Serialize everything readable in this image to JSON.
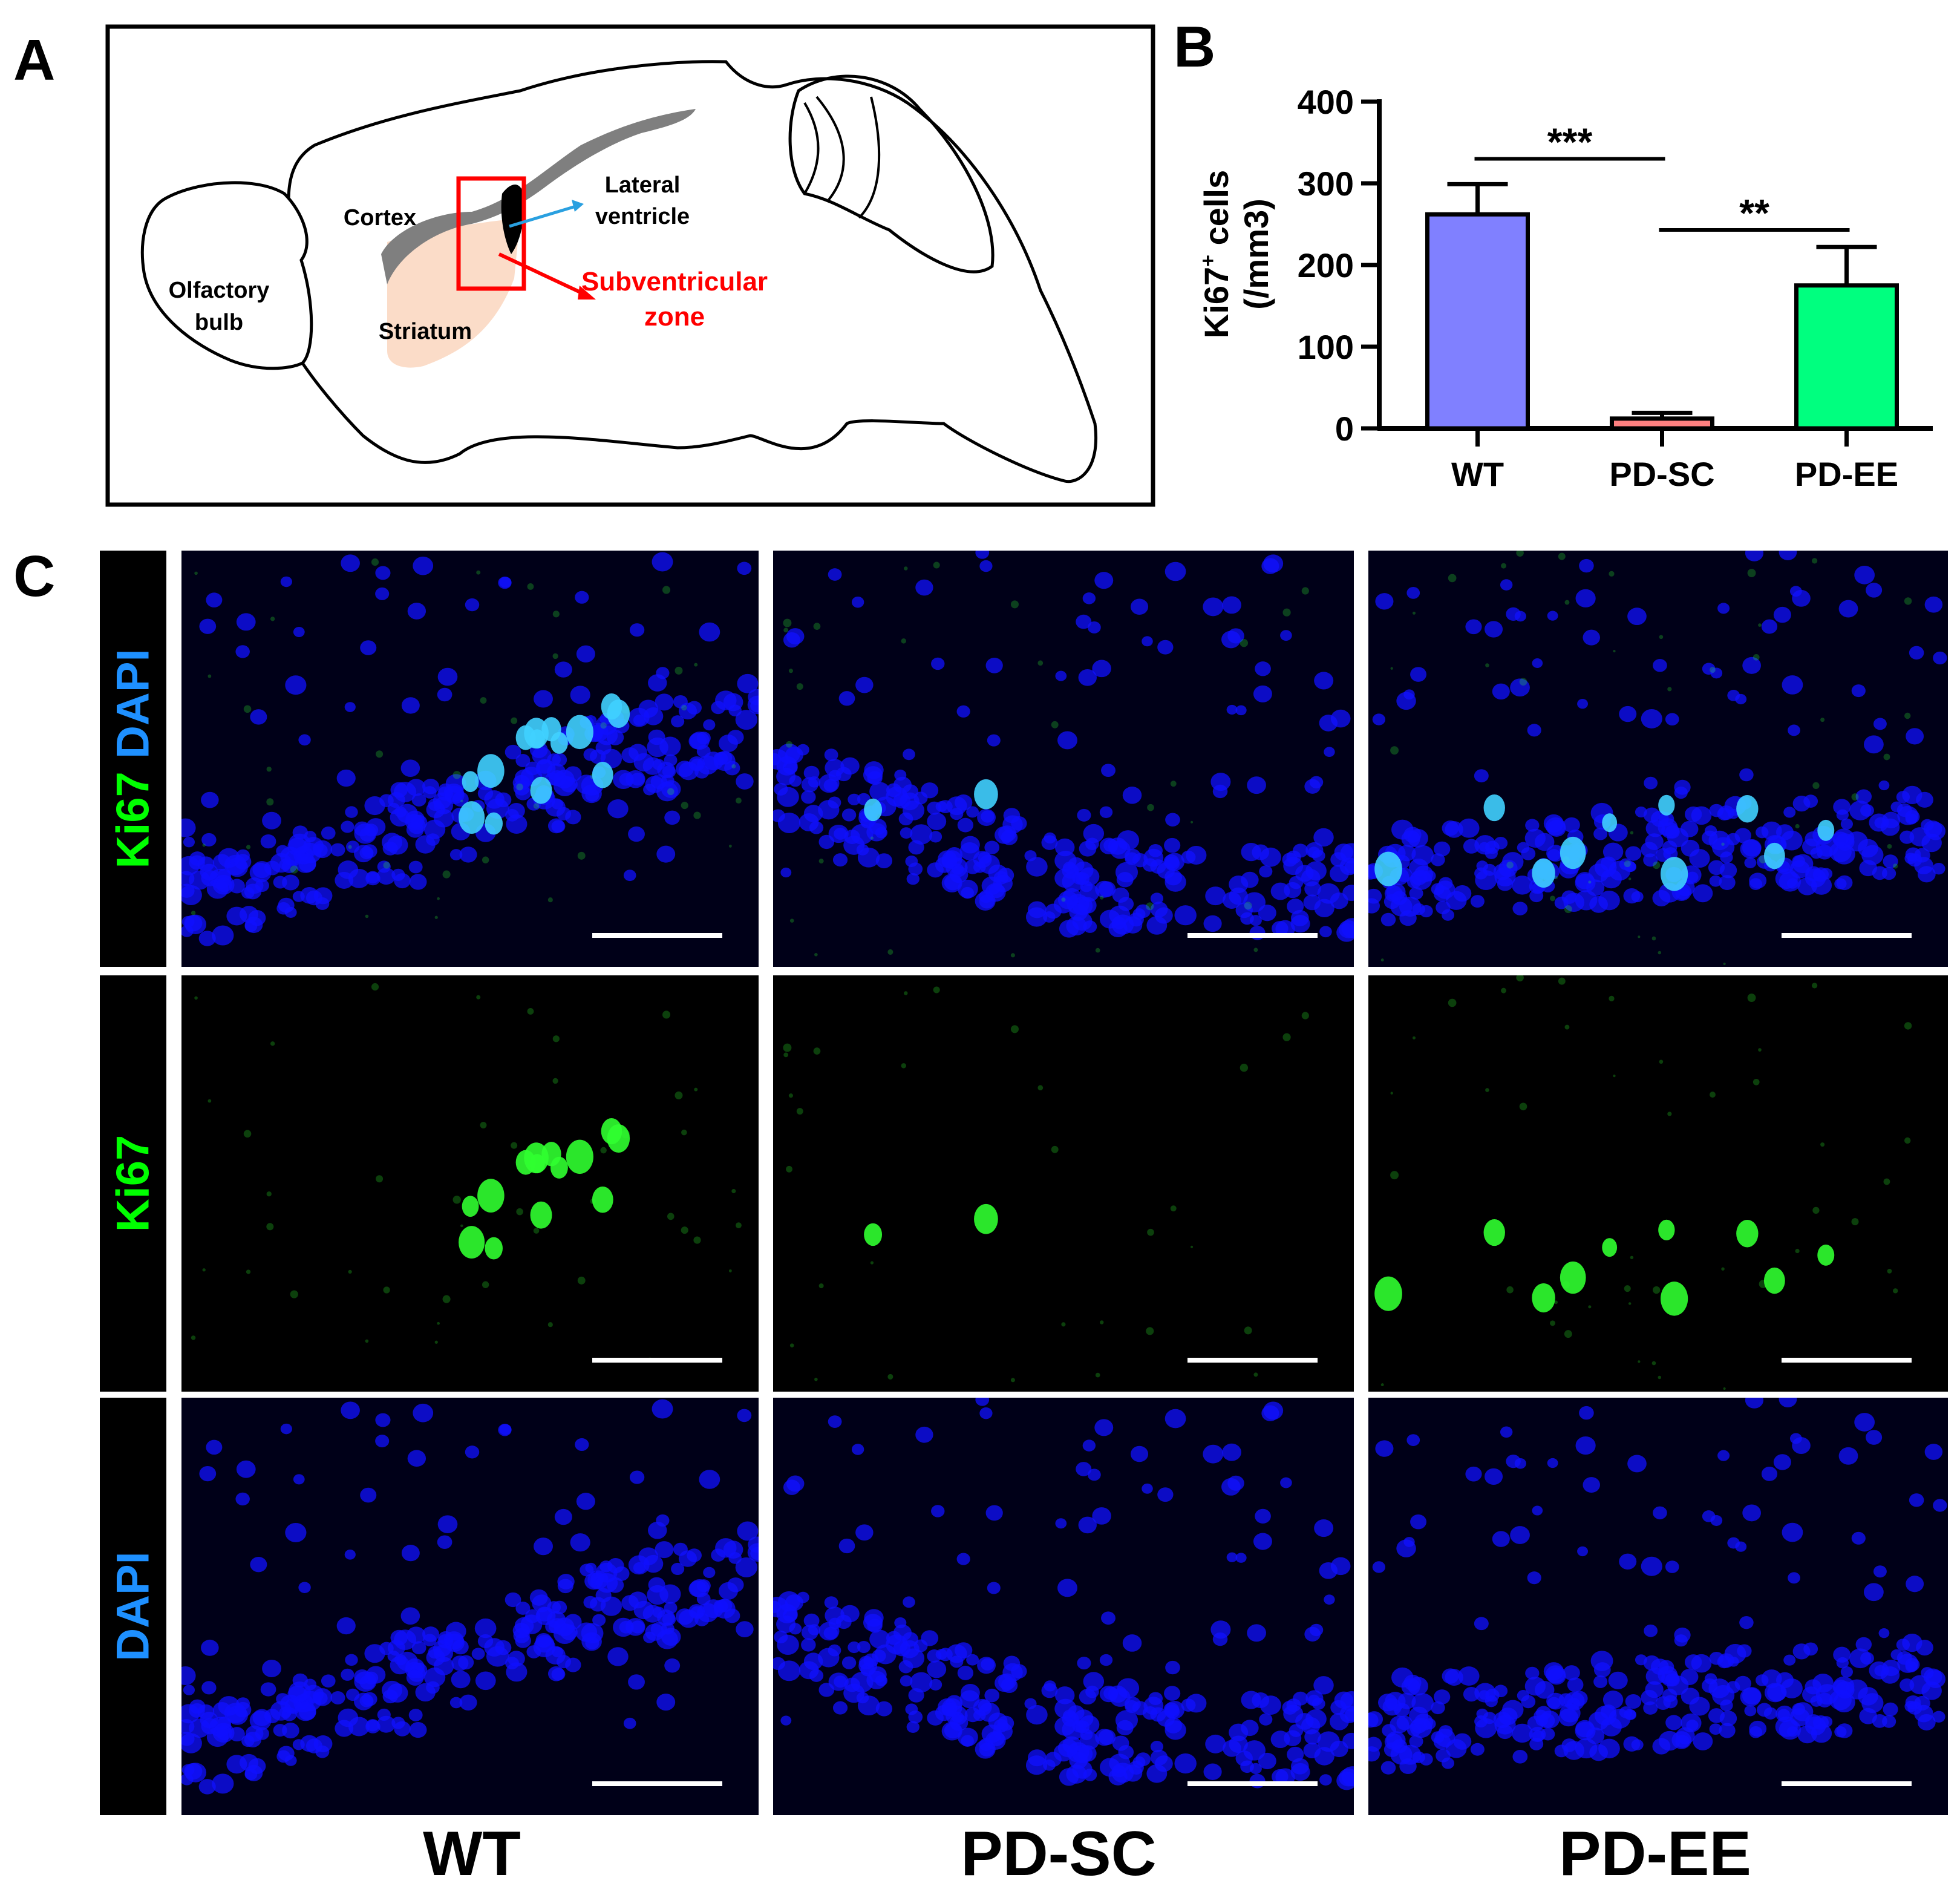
{
  "panels": {
    "a": {
      "letter": "A",
      "labels": {
        "olfactory": [
          "Olfactory",
          "bulb"
        ],
        "cortex": "Cortex",
        "striatum": "Striatum",
        "lateral": [
          "Lateral",
          "ventricle"
        ],
        "svz": [
          "Subventricular",
          "zone"
        ]
      },
      "colors": {
        "svz": "#ff0000",
        "arrow": "#2aa0e0",
        "striatum": "#fbdcc8",
        "ventricle": "#7f7f7f"
      }
    },
    "b": {
      "letter": "B"
    },
    "c": {
      "letter": "C"
    }
  },
  "chart_data": {
    "type": "bar",
    "categories": [
      "WT",
      "PD-SC",
      "PD-EE"
    ],
    "values": [
      262,
      12,
      175
    ],
    "errors": [
      37,
      7,
      47
    ],
    "bar_colors": [
      "#8080ff",
      "#ff8080",
      "#00ff7f"
    ],
    "ylabel": [
      "Ki67",
      "+",
      " cells",
      "(/mm3)"
    ],
    "ylim": [
      0,
      400
    ],
    "yticks": [
      0,
      100,
      200,
      300,
      400
    ],
    "significance": [
      {
        "from": 0,
        "to": 1,
        "label": "***"
      },
      {
        "from": 1,
        "to": 2,
        "label": "**"
      }
    ]
  },
  "micrographs": {
    "rows": [
      {
        "stain": "merge",
        "labels": [
          {
            "text": "Ki67",
            "color": "#00ff00"
          },
          {
            "text": " ",
            "color": "#000000"
          },
          {
            "text": "DAPI",
            "color": "#1e90ff"
          }
        ]
      },
      {
        "stain": "ki67",
        "labels": [
          {
            "text": "Ki67",
            "color": "#00ff00"
          }
        ]
      },
      {
        "stain": "dapi",
        "labels": [
          {
            "text": "DAPI",
            "color": "#1e90ff"
          }
        ]
      }
    ],
    "columns": [
      "WT",
      "PD-SC",
      "PD-EE"
    ],
    "colors": {
      "dapi": "#1010ff",
      "ki67": "#30ff30",
      "merge_overlap": "#40d0ff"
    }
  }
}
